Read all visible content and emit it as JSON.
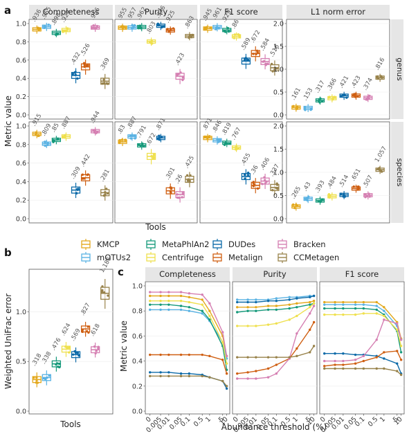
{
  "chart_data": {
    "colors": {
      "KMCP": "#e3a81c",
      "mOTUs2": "#59b2e3",
      "MetaPhlAn2": "#14997a",
      "Centrifuge": "#efe04e",
      "DUDes": "#0c6aa8",
      "Metalign": "#cf5f12",
      "Bracken": "#d57fb2",
      "CCMetagen": "#98824a"
    },
    "legend_order": [
      "KMCP",
      "mOTUs2",
      "MetaPhlAn2",
      "Centrifuge",
      "DUDes",
      "Metalign",
      "Bracken",
      "CCMetagen"
    ],
    "panel_a": {
      "type": "boxplot",
      "tag": "a",
      "xlabel": "Tools",
      "ylabel": "Metric value",
      "facets": [
        "Completeness",
        "Purity",
        "F1 score",
        "L1 norm error"
      ],
      "rows": [
        "genus",
        "species"
      ],
      "ylim_metric": [
        0,
        1
      ],
      "ylim_l1": [
        0,
        2
      ],
      "yticks_metric": [
        "0.0",
        "0.2",
        "0.4",
        "0.6",
        "0.8",
        "1.0"
      ],
      "yticks_l1": [
        "0.0",
        "0.5",
        "1.0",
        "1.5",
        "2.0"
      ],
      "tools": [
        "KMCP",
        "mOTUs2",
        "MetaPhlAn2",
        "Centrifuge",
        "DUDes",
        "Metalign",
        "Bracken",
        "CCMetagen"
      ],
      "genus": {
        "Completeness": [
          0.936,
          0.965,
          0.898,
          0.929,
          0.432,
          0.526,
          0.956,
          0.369
        ],
        "Purity": [
          0.955,
          0.957,
          0.962,
          0.803,
          0.976,
          0.925,
          0.423,
          0.863
        ],
        "F1 score": [
          0.945,
          0.961,
          0.929,
          0.86,
          0.589,
          0.672,
          0.584,
          0.516
        ],
        "L1 norm error": [
          0.161,
          0.153,
          0.317,
          0.366,
          0.421,
          0.423,
          0.374,
          0.816
        ]
      },
      "species": {
        "Completeness": [
          0.915,
          0.809,
          0.85,
          0.887,
          0.309,
          0.442,
          0.944,
          0.281
        ],
        "Purity": [
          0.83,
          0.887,
          0.791,
          0.672,
          0.871,
          0.301,
          0.26,
          0.425
        ],
        "F1 score": [
          0.871,
          0.846,
          0.819,
          0.767,
          0.455,
          0.36,
          0.406,
          0.337
        ],
        "L1 norm error": [
          0.265,
          0.43,
          0.393,
          0.484,
          0.514,
          0.651,
          0.507,
          1.057
        ]
      }
    },
    "panel_b": {
      "type": "boxplot",
      "tag": "b",
      "xlabel": "Tools",
      "ylabel": "Weighted UniFrac error",
      "ylim": [
        0,
        1.4
      ],
      "yticks": [
        "0.0",
        "0.5",
        "1.0"
      ],
      "tools": [
        "KMCP",
        "mOTUs2",
        "MetaPhlAn2",
        "Centrifuge",
        "DUDes",
        "Metalign",
        "Bracken",
        "CCMetagen"
      ],
      "values": [
        0.318,
        0.338,
        0.476,
        0.624,
        0.569,
        0.827,
        0.618,
        1.186
      ]
    },
    "panel_c": {
      "type": "line",
      "tag": "c",
      "xlabel": "Abundance threshold (%)",
      "ylabel": "Metric value",
      "facets": [
        "Completeness",
        "Purity",
        "F1 score"
      ],
      "x": [
        "0",
        "0.005",
        "0.01",
        "0.05",
        "0.1",
        "0.5",
        "1",
        "5",
        "10"
      ],
      "ylim": [
        0,
        1
      ],
      "yticks": [
        "0.0",
        "0.2",
        "0.4",
        "0.6",
        "0.8",
        "1.0"
      ],
      "series": {
        "Completeness": {
          "KMCP": [
            0.92,
            0.92,
            0.92,
            0.92,
            0.91,
            0.89,
            0.8,
            0.6,
            0.44
          ],
          "mOTUs2": [
            0.81,
            0.81,
            0.81,
            0.81,
            0.8,
            0.78,
            0.72,
            0.55,
            0.42
          ],
          "MetaPhlAn2": [
            0.85,
            0.85,
            0.85,
            0.84,
            0.83,
            0.8,
            0.73,
            0.52,
            0.33
          ],
          "Centrifuge": [
            0.88,
            0.88,
            0.88,
            0.88,
            0.87,
            0.85,
            0.76,
            0.55,
            0.38
          ],
          "DUDes": [
            0.31,
            0.31,
            0.31,
            0.3,
            0.3,
            0.29,
            0.27,
            0.24,
            0.18
          ],
          "Metalign": [
            0.45,
            0.45,
            0.45,
            0.45,
            0.45,
            0.45,
            0.44,
            0.41,
            0.3
          ],
          "Bracken": [
            0.95,
            0.95,
            0.95,
            0.95,
            0.94,
            0.93,
            0.86,
            0.63,
            0.44
          ],
          "CCMetagen": [
            0.28,
            0.28,
            0.28,
            0.28,
            0.28,
            0.28,
            0.27,
            0.24,
            0.2
          ]
        },
        "Purity": {
          "KMCP": [
            0.83,
            0.83,
            0.83,
            0.84,
            0.84,
            0.85,
            0.86,
            0.87,
            0.88
          ],
          "mOTUs2": [
            0.89,
            0.89,
            0.89,
            0.89,
            0.9,
            0.91,
            0.91,
            0.92,
            0.92
          ],
          "MetaPhlAn2": [
            0.79,
            0.8,
            0.8,
            0.81,
            0.81,
            0.82,
            0.83,
            0.85,
            0.86
          ],
          "Centrifuge": [
            0.68,
            0.68,
            0.68,
            0.69,
            0.7,
            0.73,
            0.76,
            0.83,
            0.86
          ],
          "DUDes": [
            0.87,
            0.87,
            0.87,
            0.88,
            0.88,
            0.89,
            0.9,
            0.91,
            0.92
          ],
          "Metalign": [
            0.3,
            0.31,
            0.32,
            0.34,
            0.37,
            0.42,
            0.5,
            0.65,
            0.71
          ],
          "Bracken": [
            0.26,
            0.26,
            0.26,
            0.27,
            0.3,
            0.42,
            0.62,
            0.78,
            0.84
          ],
          "CCMetagen": [
            0.43,
            0.43,
            0.43,
            0.43,
            0.43,
            0.43,
            0.44,
            0.47,
            0.52
          ]
        },
        "F1 score": {
          "KMCP": [
            0.87,
            0.87,
            0.87,
            0.87,
            0.87,
            0.87,
            0.83,
            0.71,
            0.58
          ],
          "mOTUs2": [
            0.85,
            0.85,
            0.85,
            0.85,
            0.85,
            0.84,
            0.8,
            0.68,
            0.57
          ],
          "MetaPhlAn2": [
            0.82,
            0.82,
            0.82,
            0.82,
            0.82,
            0.81,
            0.77,
            0.64,
            0.47
          ],
          "Centrifuge": [
            0.77,
            0.77,
            0.77,
            0.77,
            0.78,
            0.78,
            0.76,
            0.65,
            0.52
          ],
          "DUDes": [
            0.46,
            0.46,
            0.46,
            0.45,
            0.45,
            0.44,
            0.42,
            0.38,
            0.3
          ],
          "Metalign": [
            0.36,
            0.37,
            0.37,
            0.38,
            0.4,
            0.43,
            0.47,
            0.48,
            0.41
          ],
          "Bracken": [
            0.4,
            0.4,
            0.4,
            0.41,
            0.44,
            0.57,
            0.73,
            0.7,
            0.57
          ],
          "CCMetagen": [
            0.34,
            0.34,
            0.34,
            0.34,
            0.34,
            0.34,
            0.34,
            0.32,
            0.29
          ]
        }
      }
    }
  }
}
